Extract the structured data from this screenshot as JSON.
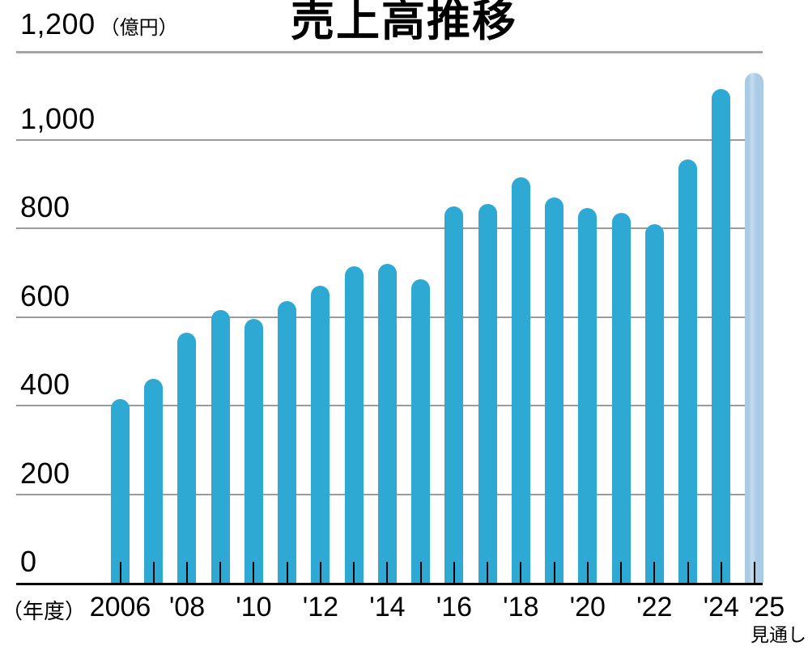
{
  "colors": {
    "bar": "#2ea9d4",
    "bar_forecast": "#a9cbe5",
    "bar_forecast_highlight": "#c6ddf0",
    "gridline": "#9b9b9b",
    "gridline_top": "#a6a6a6",
    "axis": "#000000",
    "text": "#000000"
  },
  "chart_data": {
    "type": "bar",
    "title": "売上高推移",
    "y_unit_display": "（億円）",
    "x_unit_display": "（年度）",
    "forecast_note": "見通し",
    "ylim": [
      0,
      1200
    ],
    "ytick_interval": 200,
    "grid": true,
    "legend": null,
    "yticks": [
      {
        "value": 0,
        "label": "0"
      },
      {
        "value": 200,
        "label": "200"
      },
      {
        "value": 400,
        "label": "400"
      },
      {
        "value": 600,
        "label": "600"
      },
      {
        "value": 800,
        "label": "800"
      },
      {
        "value": 1000,
        "label": "1,000"
      },
      {
        "value": 1200,
        "label": "1,200"
      }
    ],
    "bars": [
      {
        "year": "2006",
        "label": "2006",
        "value": 415,
        "forecast": false
      },
      {
        "year": "2007",
        "label": "",
        "value": 460,
        "forecast": false
      },
      {
        "year": "2008",
        "label": "'08",
        "value": 565,
        "forecast": false
      },
      {
        "year": "2009",
        "label": "",
        "value": 615,
        "forecast": false
      },
      {
        "year": "2010",
        "label": "'10",
        "value": 595,
        "forecast": false
      },
      {
        "year": "2011",
        "label": "",
        "value": 635,
        "forecast": false
      },
      {
        "year": "2012",
        "label": "'12",
        "value": 670,
        "forecast": false
      },
      {
        "year": "2013",
        "label": "",
        "value": 715,
        "forecast": false
      },
      {
        "year": "2014",
        "label": "'14",
        "value": 720,
        "forecast": false
      },
      {
        "year": "2015",
        "label": "",
        "value": 685,
        "forecast": false
      },
      {
        "year": "2016",
        "label": "'16",
        "value": 850,
        "forecast": false
      },
      {
        "year": "2017",
        "label": "",
        "value": 855,
        "forecast": false
      },
      {
        "year": "2018",
        "label": "'18",
        "value": 915,
        "forecast": false
      },
      {
        "year": "2019",
        "label": "",
        "value": 870,
        "forecast": false
      },
      {
        "year": "2020",
        "label": "'20",
        "value": 845,
        "forecast": false
      },
      {
        "year": "2021",
        "label": "",
        "value": 835,
        "forecast": false
      },
      {
        "year": "2022",
        "label": "'22",
        "value": 810,
        "forecast": false
      },
      {
        "year": "2023",
        "label": "",
        "value": 955,
        "forecast": false
      },
      {
        "year": "2024",
        "label": "'24",
        "value": 1115,
        "forecast": false
      },
      {
        "year": "2025",
        "label": "'25",
        "value": 1150,
        "forecast": true
      }
    ]
  }
}
